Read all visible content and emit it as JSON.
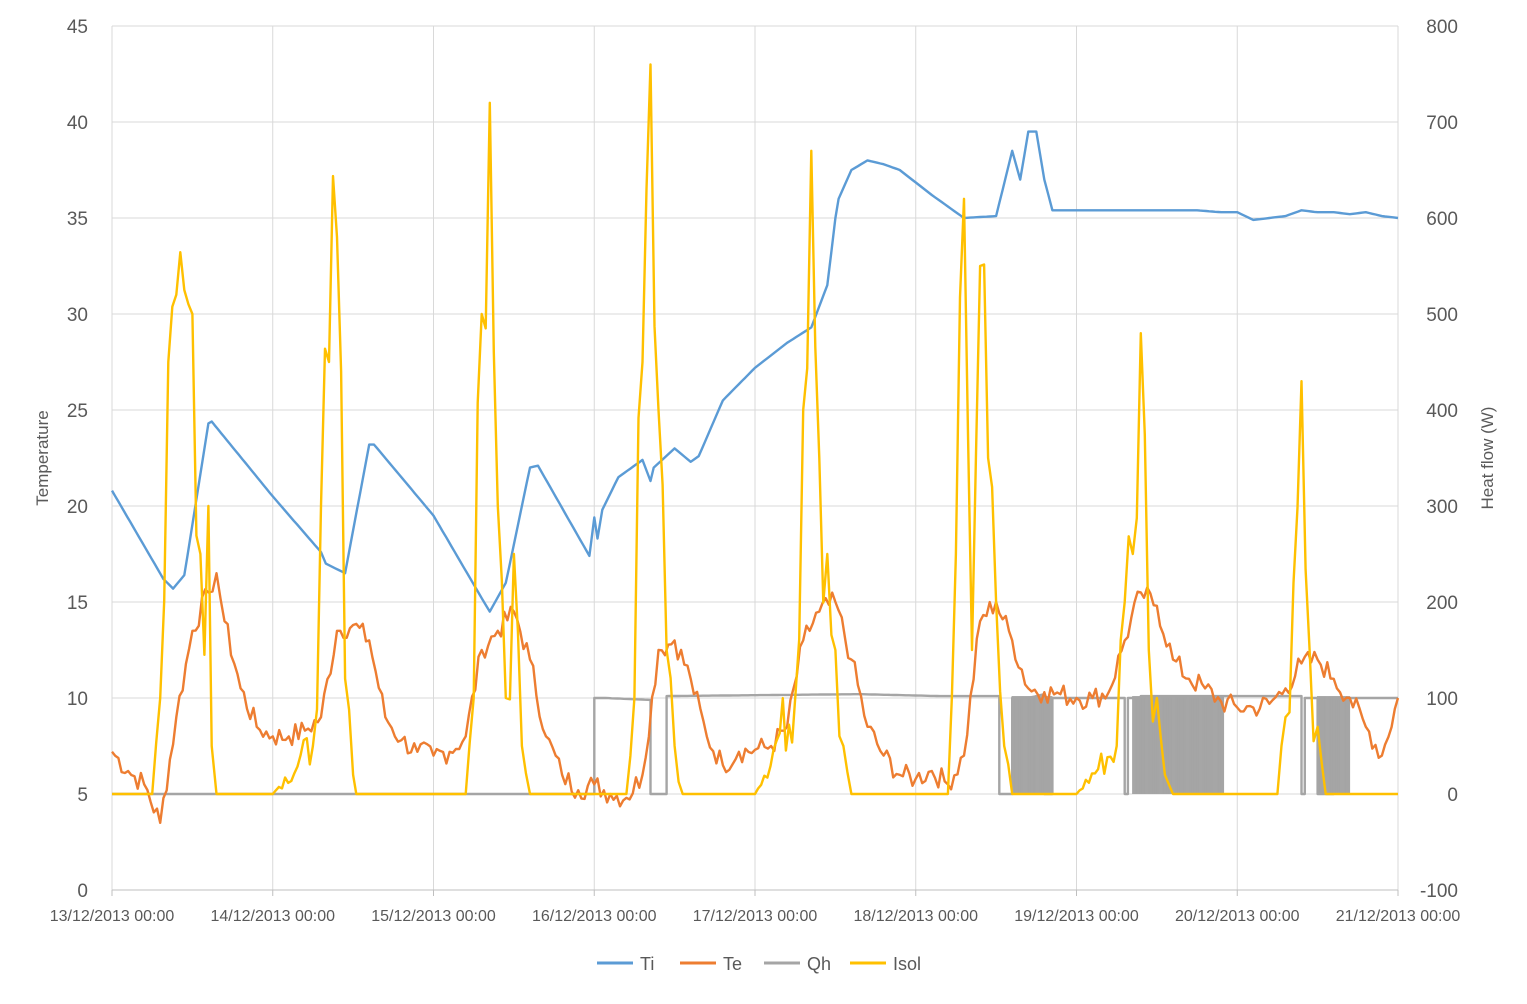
{
  "chart_data": {
    "type": "line",
    "title": "",
    "ylabel": "Temperature",
    "y2label": "Heat flow (W)",
    "ylim": [
      0,
      45
    ],
    "y2lim": [
      -100,
      800
    ],
    "yticks": [
      "0",
      "5",
      "10",
      "15",
      "20",
      "25",
      "30",
      "35",
      "40",
      "45"
    ],
    "y2ticks": [
      "-100",
      "0",
      "100",
      "200",
      "300",
      "400",
      "500",
      "600",
      "700",
      "800"
    ],
    "xlim": [
      "13/12/2013 00:00",
      "21/12/2013 00:00"
    ],
    "xticks": [
      "13/12/2013 00:00",
      "14/12/2013 00:00",
      "15/12/2013 00:00",
      "16/12/2013 00:00",
      "17/12/2013 00:00",
      "18/12/2013 00:00",
      "19/12/2013 00:00",
      "20/12/2013 00:00",
      "21/12/2013 00:00"
    ],
    "grid": "vertical and horizontal",
    "legend_position": "bottom",
    "series": [
      {
        "name": "Ti",
        "axis": "left",
        "color": "#5B9BD5",
        "x_days": [
          0,
          0.32,
          0.38,
          0.45,
          0.6,
          0.62,
          1.0,
          1.3,
          1.33,
          1.45,
          1.6,
          1.63,
          2.0,
          2.3,
          2.35,
          2.45,
          2.6,
          2.65,
          2.97,
          3.0,
          3.02,
          3.05,
          3.15,
          3.3,
          3.35,
          3.37,
          3.5,
          3.6,
          3.65,
          3.8,
          4.0,
          4.2,
          4.35,
          4.45,
          4.5,
          4.52,
          4.6,
          4.7,
          4.8,
          4.9,
          5.1,
          5.3,
          5.5,
          5.6,
          5.65,
          5.7,
          5.75,
          5.8,
          5.85,
          5.95,
          6.0,
          6.15,
          6.3,
          6.45,
          6.6,
          6.75,
          6.9,
          7.0,
          7.05,
          7.1,
          7.2,
          7.3,
          7.4,
          7.5,
          7.6,
          7.7,
          7.8,
          7.9,
          8.0
        ],
        "values": [
          20.8,
          16.2,
          15.7,
          16.4,
          24.3,
          24.4,
          20.5,
          17.6,
          17.0,
          16.5,
          23.2,
          23.2,
          19.5,
          15.2,
          14.5,
          16,
          22.0,
          22.1,
          17.4,
          19.4,
          18.3,
          19.8,
          21.5,
          22.4,
          21.3,
          22,
          23.0,
          22.3,
          22.6,
          25.5,
          27.2,
          28.5,
          29.3,
          31.5,
          35.0,
          36.0,
          37.5,
          38.0,
          37.8,
          37.5,
          36.2,
          35.0,
          35.1,
          38.5,
          37.0,
          39.5,
          39.5,
          37.0,
          35.4,
          35.4,
          35.4,
          35.4,
          35.4,
          35.4,
          35.4,
          35.4,
          35.3,
          35.3,
          35.1,
          34.9,
          35.0,
          35.1,
          35.4,
          35.3,
          35.3,
          35.2,
          35.3,
          35.1,
          35.0
        ]
      },
      {
        "name": "Te",
        "axis": "left",
        "color": "#ED7D31",
        "x_days": [
          0,
          0.1,
          0.2,
          0.3,
          0.4,
          0.5,
          0.6,
          0.65,
          0.7,
          0.8,
          0.9,
          1.0,
          1.1,
          1.2,
          1.3,
          1.4,
          1.5,
          1.6,
          1.7,
          1.8,
          1.9,
          2.0,
          2.1,
          2.2,
          2.3,
          2.4,
          2.5,
          2.6,
          2.7,
          2.8,
          2.9,
          3.0,
          3.1,
          3.2,
          3.3,
          3.4,
          3.5,
          3.6,
          3.7,
          3.8,
          3.9,
          4.0,
          4.1,
          4.2,
          4.3,
          4.4,
          4.5,
          4.6,
          4.7,
          4.8,
          4.9,
          5.0,
          5.1,
          5.2,
          5.3,
          5.4,
          5.5,
          5.6,
          5.7,
          5.8,
          5.9,
          6.0,
          6.1,
          6.2,
          6.3,
          6.4,
          6.5,
          6.6,
          6.7,
          6.8,
          6.9,
          7.0,
          7.1,
          7.2,
          7.3,
          7.4,
          7.5,
          7.6,
          7.7,
          7.8,
          7.9,
          8.0
        ],
        "values": [
          7.2,
          6.2,
          5.5,
          3.5,
          9.0,
          13.5,
          15.5,
          16.5,
          14.0,
          10.5,
          8.5,
          8.0,
          8.0,
          8.3,
          9.0,
          13.5,
          13.8,
          13.0,
          9.0,
          7.8,
          7.2,
          7.0,
          7.2,
          8.0,
          12.5,
          13.5,
          14.5,
          12.0,
          8.0,
          6.0,
          5.2,
          5.5,
          5.0,
          4.8,
          6.0,
          12.5,
          13.0,
          11.0,
          8.0,
          6.5,
          7.2,
          7.3,
          7.5,
          8.5,
          13.0,
          14.5,
          15.0,
          12.0,
          8.5,
          7.0,
          6.0,
          5.8,
          6.2,
          5.5,
          7.0,
          14.0,
          15.0,
          13.0,
          10.5,
          10.3,
          10.2,
          10.0,
          10.0,
          10.3,
          13.0,
          15.5,
          14.8,
          12.0,
          11.0,
          10.5,
          9.8,
          9.5,
          9.5,
          9.7,
          10.5,
          11.8,
          12.0,
          11.0,
          10.0,
          8.5,
          7.0,
          10.0
        ]
      },
      {
        "name": "Qh",
        "axis": "right",
        "color": "#A5A5A5",
        "x_days": [
          0,
          3.0,
          3.0,
          3.07,
          3.07,
          3.35,
          3.35,
          3.45,
          3.45,
          4.65,
          4.65,
          5.15,
          5.15,
          5.52,
          5.52,
          5.6,
          5.6,
          5.7,
          5.7,
          5.8,
          5.8,
          5.85,
          5.85,
          6.3,
          6.3,
          6.32,
          6.32,
          6.4,
          6.4,
          7.4,
          7.4,
          7.42,
          7.42,
          7.5,
          7.5,
          7.6,
          7.6,
          8.0
        ],
        "values": [
          0,
          0,
          100,
          100,
          100,
          98,
          0,
          0,
          102,
          104,
          104,
          102,
          102,
          102,
          0,
          0,
          100,
          100,
          100,
          104,
          0,
          0,
          100,
          100,
          0,
          0,
          100,
          100,
          102,
          102,
          0,
          0,
          100,
          100,
          0,
          0,
          100,
          100
        ],
        "hatch": [
          [
            5.6,
            5.85
          ],
          [
            6.35,
            6.92
          ],
          [
            7.5,
            7.7
          ]
        ]
      },
      {
        "name": "Isol",
        "axis": "right",
        "color": "#FFC000",
        "x_days": [
          0,
          0.25,
          0.3,
          0.35,
          0.4,
          0.45,
          0.5,
          0.55,
          0.6,
          0.62,
          0.65,
          0.72,
          0.75,
          1.0,
          1.25,
          1.3,
          1.35,
          1.4,
          1.45,
          1.5,
          1.52,
          1.55,
          1.6,
          1.65,
          1.7,
          1.75,
          2.0,
          2.2,
          2.25,
          2.3,
          2.35,
          2.4,
          2.45,
          2.5,
          2.55,
          2.6,
          2.65,
          2.7,
          2.75,
          3.0,
          3.2,
          3.25,
          3.3,
          3.35,
          3.4,
          3.45,
          3.5,
          3.55,
          3.6,
          3.65,
          3.7,
          3.75,
          4.0,
          4.25,
          4.3,
          4.35,
          4.4,
          4.45,
          4.5,
          4.55,
          4.6,
          4.65,
          4.7,
          4.75,
          5.0,
          5.2,
          5.25,
          5.3,
          5.35,
          5.4,
          5.45,
          5.5,
          5.55,
          5.6,
          5.65,
          5.7,
          5.75,
          6.0,
          6.25,
          6.3,
          6.35,
          6.4,
          6.45,
          6.5,
          6.55,
          6.6,
          6.65,
          6.7,
          6.75,
          7.0,
          7.25,
          7.3,
          7.35,
          7.4,
          7.45,
          7.5,
          7.55,
          7.6,
          7.65,
          7.7,
          7.75,
          7.8,
          8.0
        ],
        "values": [
          0,
          0,
          100,
          450,
          520,
          525,
          500,
          250,
          300,
          50,
          0,
          0,
          0,
          0,
          50,
          300,
          450,
          580,
          120,
          20,
          0,
          0,
          0,
          0,
          0,
          0,
          0,
          0,
          100,
          500,
          720,
          300,
          100,
          250,
          50,
          0,
          0,
          0,
          0,
          0,
          0,
          100,
          450,
          760,
          400,
          150,
          50,
          0,
          0,
          0,
          0,
          0,
          0,
          100,
          400,
          670,
          350,
          250,
          150,
          50,
          0,
          0,
          0,
          0,
          0,
          0,
          250,
          620,
          150,
          550,
          350,
          200,
          50,
          0,
          0,
          0,
          0,
          0,
          50,
          200,
          250,
          480,
          150,
          100,
          20,
          0,
          0,
          0,
          0,
          0,
          0,
          80,
          220,
          430,
          150,
          70,
          0,
          0,
          0,
          0,
          0,
          0,
          0
        ]
      }
    ]
  }
}
